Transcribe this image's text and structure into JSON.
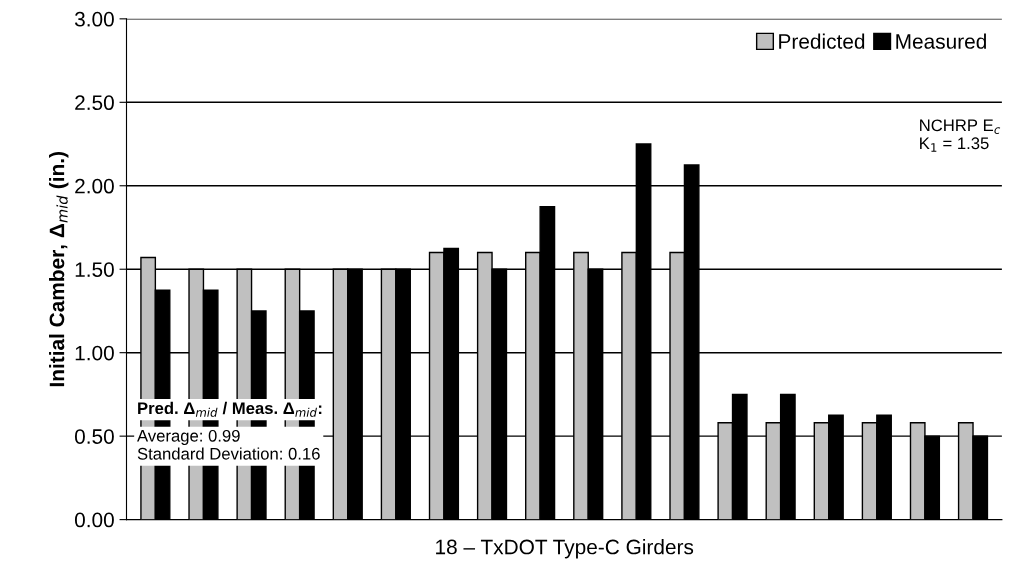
{
  "chart_data": {
    "type": "bar",
    "xlabel": "18 – TxDOT Type-C Girders",
    "ylabel": "Initial Camber, Δ$_{mid}$ (in.)",
    "categories": [
      null,
      null,
      null,
      null,
      null,
      null,
      null,
      null,
      null,
      null,
      null,
      null,
      null,
      null,
      null,
      null,
      null,
      null
    ],
    "series": [
      {
        "name": "Predicted",
        "color": "#c0c0c0",
        "values": [
          1.57,
          1.5,
          1.5,
          1.5,
          1.5,
          1.5,
          1.6,
          1.6,
          1.6,
          1.6,
          1.6,
          1.6,
          0.58,
          0.58,
          0.58,
          0.58,
          0.58,
          0.58
        ]
      },
      {
        "name": "Measured",
        "color": "#000000",
        "values": [
          1.375,
          1.375,
          1.25,
          1.25,
          1.5,
          1.5,
          1.625,
          1.5,
          1.875,
          1.5,
          2.25,
          2.125,
          0.75,
          0.75,
          0.625,
          0.625,
          0.5,
          0.5
        ]
      }
    ],
    "ylim": [
      0,
      3
    ],
    "yticks": [
      {
        "value": 0,
        "label": "0.00"
      },
      {
        "value": 0.5,
        "label": "0.50"
      },
      {
        "value": 1,
        "label": "1.00"
      },
      {
        "value": 1.5,
        "label": "1.50"
      },
      {
        "value": 2,
        "label": "2.00"
      },
      {
        "value": 2.5,
        "label": "2.50"
      },
      {
        "value": 3,
        "label": "3.00"
      }
    ],
    "grid": "y",
    "legend": "top right",
    "tick_labels": "y",
    "annotations": [
      "NCHRP E$_{c}$\nK$_{1}$ = 1.35",
      "Pred. Δ$_{mid}$ / Meas. Δ$_{mid}$:",
      "Average: 0.99\nStandard Deviation: 0.16"
    ]
  }
}
